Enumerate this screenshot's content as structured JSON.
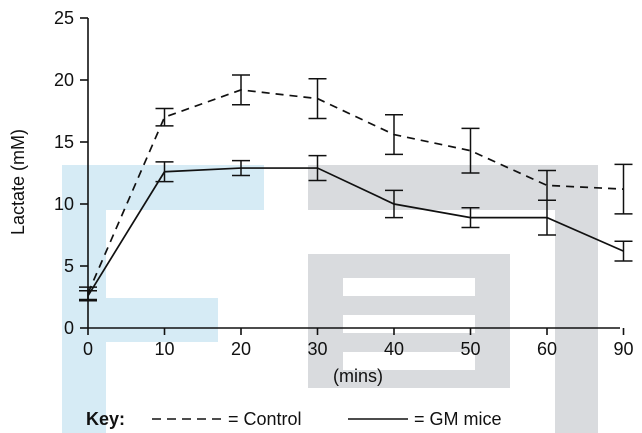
{
  "chart_data": {
    "type": "line",
    "x_tick_labels": [
      "0",
      "10",
      "20",
      "30",
      "40",
      "50",
      "60",
      "90"
    ],
    "x": [
      0,
      10,
      20,
      30,
      40,
      50,
      60,
      90
    ],
    "xlabel": "(mins)",
    "ylabel": "Lactate (mM)",
    "ylim": [
      0,
      25
    ],
    "y_ticks": [
      0,
      5,
      10,
      15,
      20,
      25
    ],
    "grid": false,
    "series": [
      {
        "name": "Control",
        "line_style": "dashed",
        "values": [
          2.8,
          17.0,
          19.2,
          18.5,
          15.6,
          14.3,
          11.5,
          11.2
        ],
        "error": [
          0.5,
          0.7,
          1.2,
          1.6,
          1.6,
          1.8,
          1.2,
          2.0
        ]
      },
      {
        "name": "GM mice",
        "line_style": "solid",
        "values": [
          2.6,
          12.6,
          12.9,
          12.9,
          10.0,
          8.9,
          8.9,
          6.2
        ],
        "error": [
          0.4,
          0.8,
          0.6,
          1.0,
          1.1,
          0.8,
          1.4,
          0.8
        ]
      }
    ],
    "key": {
      "title": "Key:",
      "control_label": "= Control",
      "gm_label": "= GM mice"
    },
    "colors": {
      "line": "#111111",
      "watermark_blue": "#d6ebf5",
      "watermark_gray": "#d9dbde"
    }
  }
}
